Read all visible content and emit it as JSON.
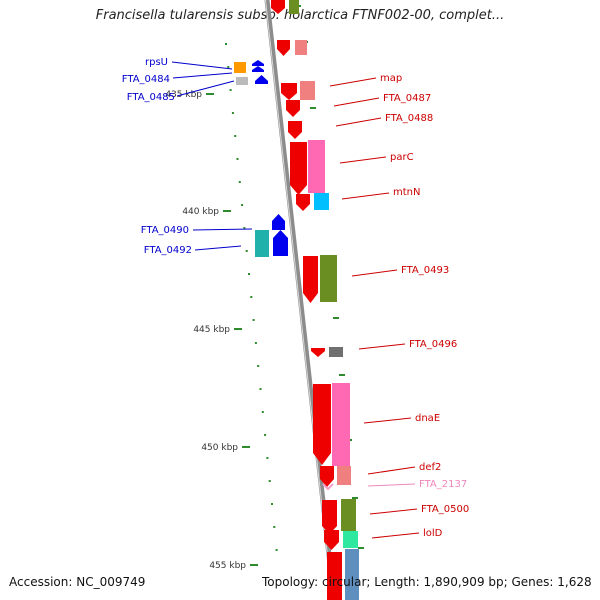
{
  "title": "Francisella tularensis subsp. holarctica FTNF002-00, complet...",
  "footer": {
    "accession": "Accession: NC_009749",
    "info": "Topology: circular; Length: 1,890,909 bp; Genes: 1,628"
  },
  "colors": {
    "backbone": "#8c8c8c",
    "tick": "#2e8b2e",
    "forward_arrow": "#0000ee",
    "reverse_arrow": "#ee0000",
    "label_forward": "#0000cc",
    "label_reverse": "#cc0000",
    "label_pseudo": "#ee88bb",
    "cog_red": "#ee0000",
    "cog_olive": "#6b8e23",
    "cog_pink": "#ff69b4",
    "cog_salmon": "#f08080",
    "cog_cyan": "#00bfff",
    "cog_teal": "#20b2aa",
    "cog_green": "#2ee8a0",
    "cog_steel": "#5f8fbf",
    "cog_gray": "#707070",
    "cog_orange": "#ff9900"
  },
  "kbp_labels": [
    "435 kbp",
    "440 kbp",
    "445 kbp",
    "450 kbp",
    "455 kbp"
  ],
  "genes": [
    {
      "label": "rpsU",
      "strand": "forward"
    },
    {
      "label": "FTA_0484",
      "strand": "forward"
    },
    {
      "label": "FTA_0485",
      "strand": "forward"
    },
    {
      "label": "map",
      "strand": "reverse"
    },
    {
      "label": "FTA_0487",
      "strand": "reverse"
    },
    {
      "label": "FTA_0488",
      "strand": "reverse"
    },
    {
      "label": "parC",
      "strand": "reverse"
    },
    {
      "label": "mtnN",
      "strand": "reverse"
    },
    {
      "label": "FTA_0490",
      "strand": "forward"
    },
    {
      "label": "FTA_0492",
      "strand": "forward"
    },
    {
      "label": "FTA_0493",
      "strand": "reverse"
    },
    {
      "label": "FTA_0496",
      "strand": "reverse"
    },
    {
      "label": "dnaE",
      "strand": "reverse"
    },
    {
      "label": "def2",
      "strand": "reverse"
    },
    {
      "label": "FTA_2137",
      "strand": "pseudo"
    },
    {
      "label": "FTA_0500",
      "strand": "reverse"
    },
    {
      "label": "lolD",
      "strand": "reverse"
    }
  ]
}
